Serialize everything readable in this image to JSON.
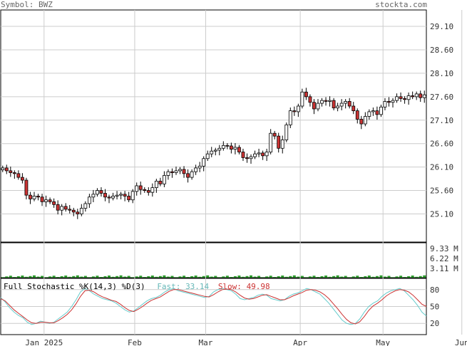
{
  "header": {
    "symbol": "Symbol: BWZ",
    "brand": "stockta.com"
  },
  "stochastic": {
    "title": "Full Stochastic %K(14,3) %D(3)",
    "fast_label": "Fast:",
    "fast_value": "33.14",
    "slow_label": "Slow:",
    "slow_value": "49.98",
    "fast_color": "#66cccc",
    "slow_color": "#cc3333",
    "ticks": [
      "80",
      "50",
      "20"
    ]
  },
  "colors": {
    "up": "#ffffff",
    "down": "#cc3333",
    "outline": "#000000",
    "volume": "#2a9a2a",
    "grid": "#cccccc"
  },
  "chart_data": {
    "type": "candlestick",
    "price_ticks": [
      25.1,
      25.6,
      26.1,
      26.6,
      27.1,
      27.6,
      28.1,
      28.6,
      29.1
    ],
    "ylim": [
      24.5,
      29.45
    ],
    "month_labels": [
      "Jan 2025",
      "Feb",
      "Mar",
      "Apr",
      "May",
      "Jun"
    ],
    "month_start_index": [
      11,
      34,
      52,
      76,
      97,
      117
    ],
    "volume_ticks": [
      "9.33 M",
      "6.22 M",
      "3.11 M"
    ],
    "volume_max_m": 9.33,
    "closes": [
      26.08,
      26.02,
      25.98,
      25.96,
      25.88,
      25.82,
      25.5,
      25.42,
      25.48,
      25.46,
      25.36,
      25.4,
      25.36,
      25.3,
      25.18,
      25.26,
      25.2,
      25.18,
      25.14,
      25.1,
      25.22,
      25.32,
      25.46,
      25.52,
      25.6,
      25.54,
      25.46,
      25.44,
      25.48,
      25.5,
      25.52,
      25.48,
      25.4,
      25.58,
      25.7,
      25.62,
      25.6,
      25.56,
      25.66,
      25.8,
      25.74,
      25.92,
      26.0,
      25.98,
      26.02,
      26.05,
      25.96,
      25.88,
      26.0,
      26.08,
      26.12,
      26.28,
      26.38,
      26.44,
      26.46,
      26.5,
      26.56,
      26.55,
      26.48,
      26.52,
      26.42,
      26.3,
      26.28,
      26.32,
      26.38,
      26.4,
      26.34,
      26.42,
      26.82,
      26.76,
      26.5,
      26.68,
      27.0,
      27.3,
      27.28,
      27.4,
      27.7,
      27.6,
      27.48,
      27.34,
      27.46,
      27.52,
      27.5,
      27.52,
      27.36,
      27.4,
      27.46,
      27.5,
      27.4,
      27.3,
      27.12,
      27.02,
      27.18,
      27.28,
      27.3,
      27.22,
      27.38,
      27.5,
      27.48,
      27.52,
      27.6,
      27.56,
      27.54,
      27.62,
      27.6,
      27.66,
      27.58,
      27.64
    ],
    "sto_fast": [
      66,
      58,
      48,
      40,
      34,
      30,
      22,
      18,
      20,
      24,
      22,
      20,
      22,
      28,
      34,
      40,
      50,
      62,
      76,
      82,
      78,
      72,
      68,
      64,
      62,
      60,
      56,
      50,
      44,
      40,
      42,
      48,
      54,
      60,
      64,
      66,
      70,
      76,
      80,
      82,
      78,
      76,
      74,
      72,
      70,
      68,
      66,
      68,
      76,
      80,
      82,
      80,
      78,
      72,
      64,
      62,
      64,
      66,
      70,
      72,
      70,
      64,
      62,
      60,
      62,
      68,
      72,
      74,
      78,
      82,
      80,
      76,
      72,
      64,
      56,
      46,
      36,
      26,
      20,
      18,
      20,
      28,
      40,
      50,
      56,
      60,
      68,
      74,
      78,
      80,
      82,
      78,
      70,
      62,
      52,
      40,
      33
    ],
    "sto_slow": [
      64,
      60,
      52,
      44,
      38,
      32,
      26,
      21,
      20,
      22,
      22,
      21,
      21,
      25,
      30,
      36,
      44,
      55,
      68,
      78,
      79,
      76,
      71,
      67,
      64,
      61,
      59,
      54,
      48,
      43,
      41,
      45,
      50,
      56,
      61,
      64,
      67,
      72,
      77,
      80,
      80,
      78,
      76,
      74,
      72,
      70,
      68,
      67,
      71,
      76,
      80,
      81,
      80,
      76,
      70,
      65,
      63,
      64,
      67,
      70,
      71,
      68,
      65,
      62,
      62,
      65,
      69,
      72,
      75,
      79,
      80,
      79,
      76,
      71,
      64,
      55,
      46,
      36,
      27,
      21,
      19,
      23,
      32,
      43,
      51,
      56,
      62,
      69,
      74,
      78,
      80,
      79,
      76,
      70,
      62,
      54,
      50
    ]
  }
}
